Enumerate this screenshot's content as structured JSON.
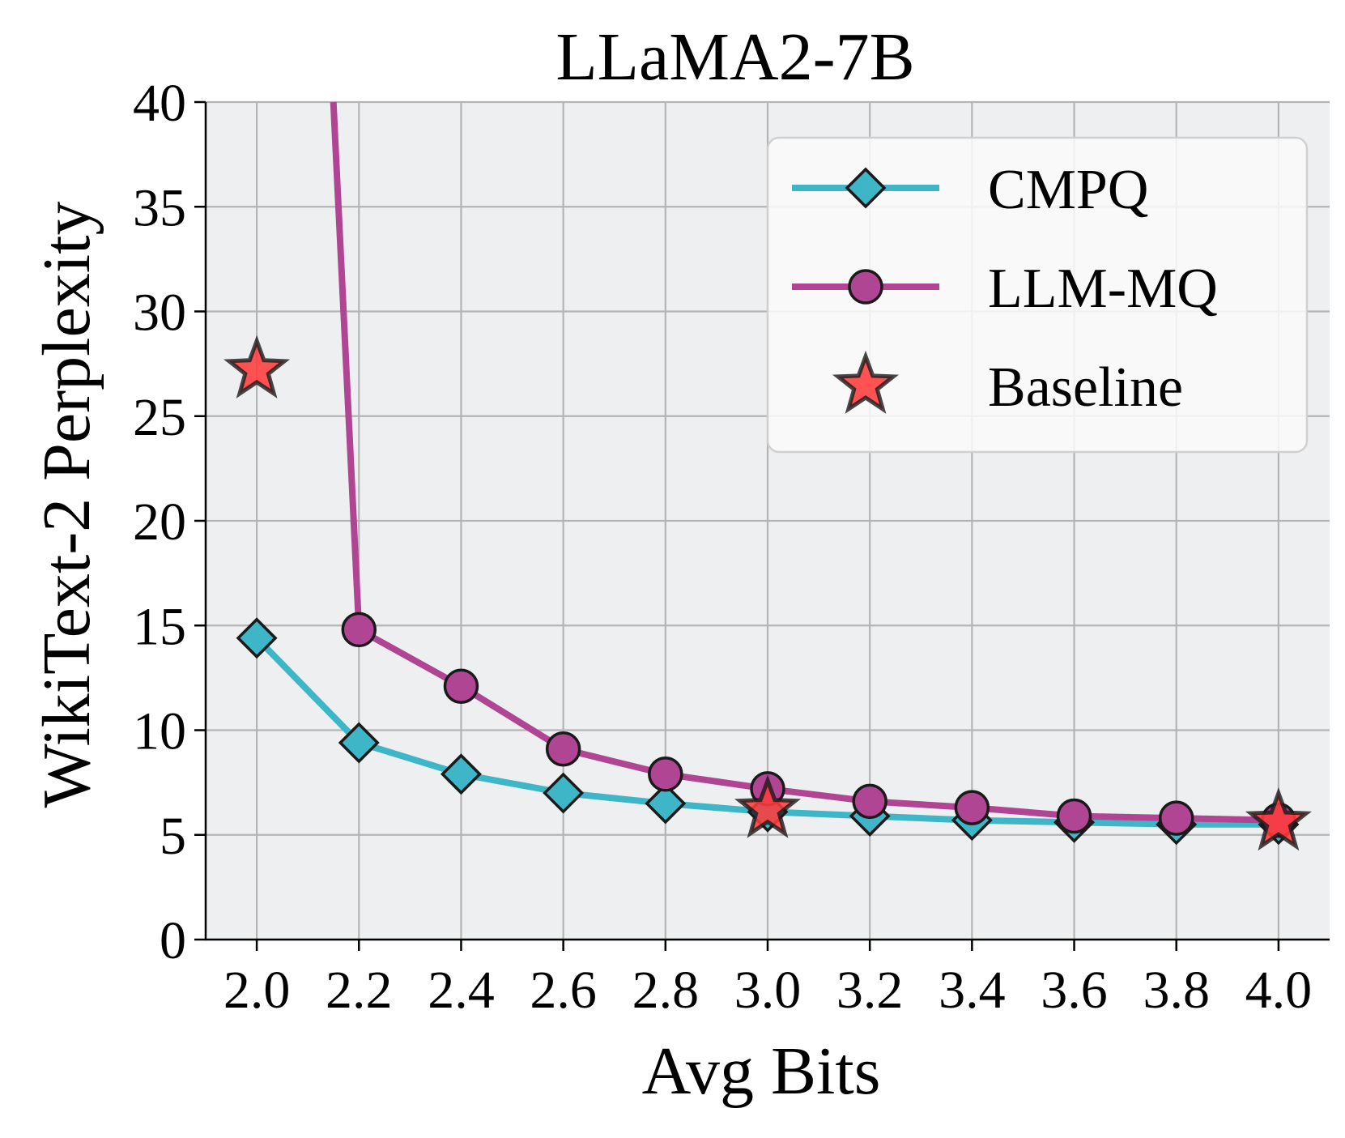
{
  "chart_data": {
    "type": "line",
    "title": "LLaMA2-7B",
    "xlabel": "Avg Bits",
    "ylabel": "WikiText-2 Perplexity",
    "xlim": [
      1.9,
      4.1
    ],
    "ylim": [
      0,
      40
    ],
    "xticks": [
      2.0,
      2.2,
      2.4,
      2.6,
      2.8,
      3.0,
      3.2,
      3.4,
      3.6,
      3.8,
      4.0
    ],
    "xtick_labels": [
      "2.0",
      "2.2",
      "2.4",
      "2.6",
      "2.8",
      "3.0",
      "3.2",
      "3.4",
      "3.6",
      "3.8",
      "4.0"
    ],
    "yticks": [
      0,
      5,
      10,
      15,
      20,
      25,
      30,
      35,
      40
    ],
    "ytick_labels": [
      "0",
      "5",
      "10",
      "15",
      "20",
      "25",
      "30",
      "35",
      "40"
    ],
    "grid": true,
    "legend_position": "top-right",
    "series": [
      {
        "name": "CMPQ",
        "marker": "diamond",
        "color": "#3fb6c8",
        "x": [
          2.0,
          2.2,
          2.4,
          2.6,
          2.8,
          3.0,
          3.2,
          3.4,
          3.6,
          3.8,
          4.0
        ],
        "y": [
          14.4,
          9.4,
          7.9,
          7.0,
          6.5,
          6.1,
          5.9,
          5.7,
          5.6,
          5.5,
          5.5
        ]
      },
      {
        "name": "LLM-MQ",
        "marker": "circle",
        "color": "#b04593",
        "x": [
          2.15,
          2.2,
          2.4,
          2.6,
          2.8,
          3.0,
          3.2,
          3.4,
          3.6,
          3.8,
          4.0
        ],
        "y": [
          40.0,
          14.8,
          12.1,
          9.1,
          7.9,
          7.2,
          6.6,
          6.3,
          5.9,
          5.8,
          5.7
        ],
        "marker_from_index": 1
      },
      {
        "name": "Baseline",
        "marker": "star",
        "color": "#ff3b3b",
        "x": [
          2.0,
          3.0,
          4.0
        ],
        "y": [
          27.2,
          6.2,
          5.6
        ]
      }
    ]
  },
  "colors": {
    "plot_background": "#eeeff1",
    "grid": "#b4b4b4",
    "legend_background": "#fafafa",
    "legend_border": "#d0d0d0",
    "marker_edge": "#1a1a1a"
  }
}
